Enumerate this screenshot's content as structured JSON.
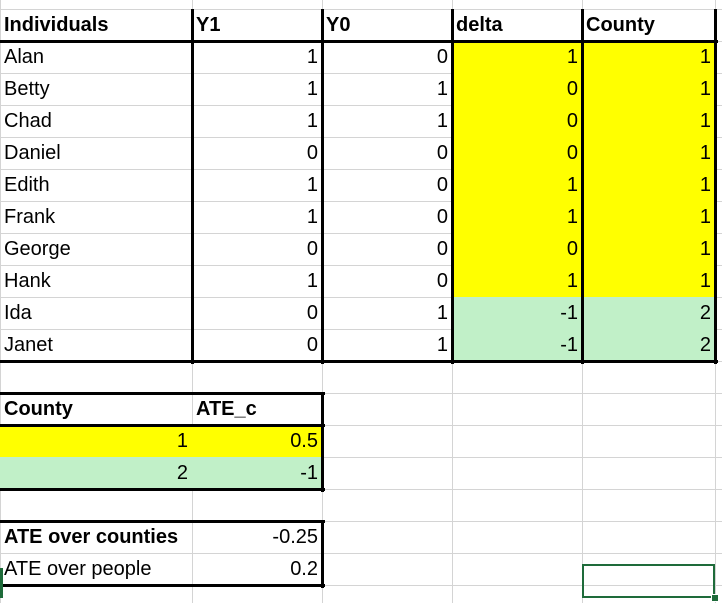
{
  "colors": {
    "yellow": "#ffff00",
    "green": "#c1f0c8",
    "gridline": "#d4d4d4",
    "border": "#000000",
    "selection": "#1e6b3a"
  },
  "main_table": {
    "headers": [
      "Individuals",
      "Y1",
      "Y0",
      "delta",
      "County"
    ],
    "rows": [
      {
        "name": "Alan",
        "y1": "1",
        "y0": "0",
        "delta": "1",
        "county": "1",
        "group": "yellow"
      },
      {
        "name": "Betty",
        "y1": "1",
        "y0": "1",
        "delta": "0",
        "county": "1",
        "group": "yellow"
      },
      {
        "name": "Chad",
        "y1": "1",
        "y0": "1",
        "delta": "0",
        "county": "1",
        "group": "yellow"
      },
      {
        "name": "Daniel",
        "y1": "0",
        "y0": "0",
        "delta": "0",
        "county": "1",
        "group": "yellow"
      },
      {
        "name": "Edith",
        "y1": "1",
        "y0": "0",
        "delta": "1",
        "county": "1",
        "group": "yellow"
      },
      {
        "name": "Frank",
        "y1": "1",
        "y0": "0",
        "delta": "1",
        "county": "1",
        "group": "yellow"
      },
      {
        "name": "George",
        "y1": "0",
        "y0": "0",
        "delta": "0",
        "county": "1",
        "group": "yellow"
      },
      {
        "name": "Hank",
        "y1": "1",
        "y0": "0",
        "delta": "1",
        "county": "1",
        "group": "yellow"
      },
      {
        "name": "Ida",
        "y1": "0",
        "y0": "1",
        "delta": "-1",
        "county": "2",
        "group": "green"
      },
      {
        "name": "Janet",
        "y1": "0",
        "y0": "1",
        "delta": "-1",
        "county": "2",
        "group": "green"
      }
    ]
  },
  "county_table": {
    "headers": [
      "County",
      "ATE_c"
    ],
    "rows": [
      {
        "county": "1",
        "ate_c": "0.5",
        "group": "yellow"
      },
      {
        "county": "2",
        "ate_c": "-1",
        "group": "green"
      }
    ]
  },
  "summary_table": {
    "rows": [
      {
        "label": "ATE over counties",
        "value": "-0.25",
        "bold": true
      },
      {
        "label": "ATE over people",
        "value": "0.2",
        "bold": false
      }
    ]
  }
}
